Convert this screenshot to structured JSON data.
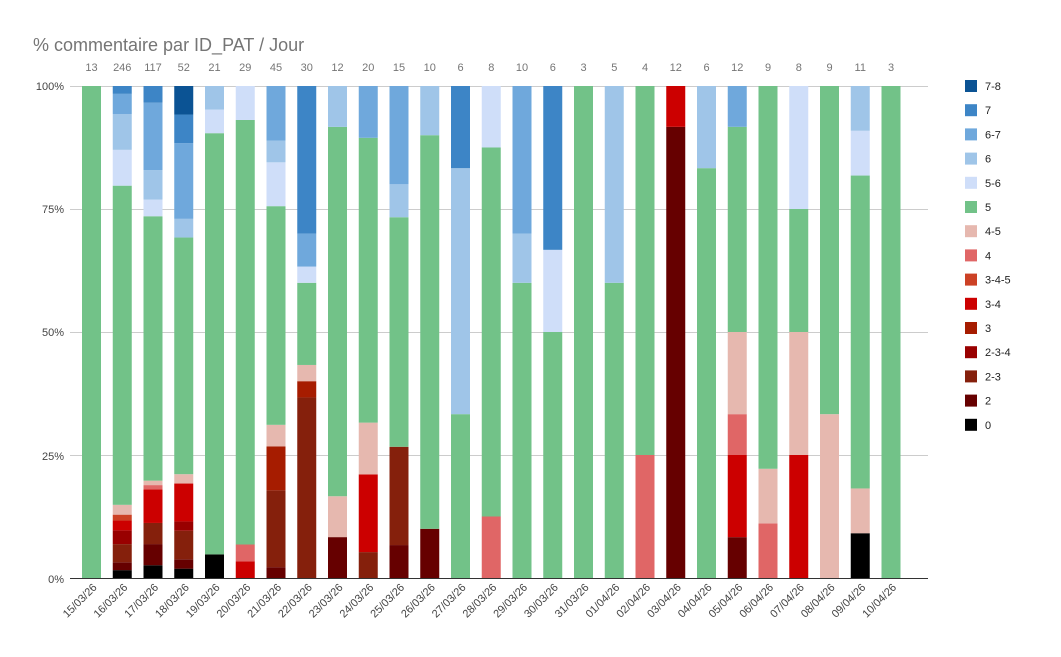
{
  "chart_data": {
    "type": "bar",
    "stacked": "percent",
    "title": "% commentaire par ID_PAT / Jour",
    "yticks": [
      "0%",
      "25%",
      "50%",
      "75%",
      "100%"
    ],
    "ylim": [
      0,
      100
    ],
    "grid": true,
    "legend_position": "right",
    "categories": [
      "15/03/26",
      "16/03/26",
      "17/03/26",
      "18/03/26",
      "19/03/26",
      "20/03/26",
      "21/03/26",
      "22/03/26",
      "23/03/26",
      "24/03/26",
      "25/03/26",
      "26/03/26",
      "27/03/26",
      "28/03/26",
      "29/03/26",
      "30/03/26",
      "31/03/26",
      "01/04/26",
      "02/04/26",
      "03/04/26",
      "04/04/26",
      "05/04/26",
      "06/04/26",
      "07/04/26",
      "08/04/26",
      "09/04/26",
      "10/04/26"
    ],
    "totals": [
      13,
      246,
      117,
      52,
      21,
      29,
      45,
      30,
      12,
      20,
      15,
      10,
      6,
      8,
      10,
      6,
      3,
      5,
      4,
      12,
      6,
      12,
      9,
      8,
      9,
      11,
      3
    ],
    "series": [
      {
        "name": "0",
        "color": "#000000",
        "values": [
          0,
          1.6,
          2.6,
          1.9,
          4.8,
          0,
          0,
          0,
          0,
          0,
          0,
          0,
          0,
          0,
          0,
          0,
          0,
          0,
          0,
          0,
          0,
          0,
          0,
          0,
          0,
          9.1,
          0
        ]
      },
      {
        "name": "2",
        "color": "#660000",
        "values": [
          0,
          1.6,
          4.3,
          1.9,
          0,
          0,
          2.2,
          0,
          8.3,
          0,
          6.7,
          10,
          0,
          0,
          0,
          0,
          0,
          0,
          0,
          91.7,
          0,
          8.3,
          0,
          0,
          0,
          0,
          0
        ]
      },
      {
        "name": "2-3",
        "color": "#85200c",
        "values": [
          0,
          3.7,
          4.3,
          5.8,
          0,
          0,
          15.6,
          36.7,
          0,
          5,
          20,
          0,
          0,
          0,
          0,
          0,
          0,
          0,
          0,
          0,
          0,
          0,
          0,
          0,
          0,
          0,
          0
        ]
      },
      {
        "name": "2-3-4",
        "color": "#990000",
        "values": [
          0,
          2.8,
          0,
          1.9,
          0,
          0,
          0,
          0,
          0,
          0,
          0,
          0,
          0,
          0,
          0,
          0,
          0,
          0,
          0,
          0,
          0,
          0,
          0,
          0,
          0,
          0,
          0
        ]
      },
      {
        "name": "3",
        "color": "#a61c00",
        "values": [
          0,
          0,
          0,
          0,
          0,
          0,
          8.9,
          3.3,
          0,
          0,
          0,
          0,
          0,
          0,
          0,
          0,
          0,
          0,
          0,
          0,
          0,
          0,
          0,
          0,
          0,
          0,
          0
        ]
      },
      {
        "name": "3-4",
        "color": "#cc0000",
        "values": [
          0,
          2,
          6.8,
          7.7,
          0,
          3.4,
          0,
          0,
          0,
          15,
          0,
          0,
          0,
          0,
          0,
          0,
          0,
          0,
          0,
          8.3,
          0,
          16.7,
          0,
          25,
          0,
          0,
          0
        ]
      },
      {
        "name": "3-4-5",
        "color": "#cc4125",
        "values": [
          0,
          1.2,
          0,
          0,
          0,
          0,
          0,
          0,
          0,
          0,
          0,
          0,
          0,
          0,
          0,
          0,
          0,
          0,
          0,
          0,
          0,
          0,
          0,
          0,
          0,
          0,
          0
        ]
      },
      {
        "name": "4",
        "color": "#e06666",
        "values": [
          0,
          0,
          0.9,
          0,
          0,
          3.4,
          0,
          0,
          0,
          0,
          0,
          0,
          0,
          12.5,
          0,
          0,
          0,
          0,
          25,
          0,
          0,
          8.3,
          11.1,
          0,
          0,
          0,
          0
        ]
      },
      {
        "name": "4-5",
        "color": "#e6b8af",
        "values": [
          0,
          2,
          0.9,
          1.9,
          0,
          0,
          4.4,
          3.3,
          8.3,
          10,
          0,
          0,
          0,
          0,
          0,
          0,
          0,
          0,
          0,
          0,
          0,
          16.7,
          11.1,
          25,
          33.3,
          9.1,
          0
        ]
      },
      {
        "name": "5",
        "color": "#72c288",
        "values": [
          100,
          65,
          53.8,
          48.1,
          85.7,
          86.2,
          44.4,
          16.7,
          75,
          55,
          46.7,
          80,
          33.3,
          75,
          60,
          50,
          100,
          60,
          75,
          0,
          83.3,
          41.7,
          77.8,
          25,
          66.7,
          63.6,
          100
        ]
      },
      {
        "name": "5-6",
        "color": "#cfdef9",
        "values": [
          0,
          7.3,
          3.4,
          0,
          4.8,
          6.9,
          8.9,
          3.3,
          0,
          0,
          0,
          0,
          0,
          12.5,
          0,
          16.7,
          0,
          0,
          0,
          0,
          0,
          0,
          0,
          25,
          0,
          9.1,
          0
        ]
      },
      {
        "name": "6",
        "color": "#9fc5e8",
        "values": [
          0,
          7.3,
          6,
          3.8,
          4.8,
          0,
          4.4,
          0,
          8.3,
          0,
          6.7,
          10,
          50,
          0,
          10,
          0,
          0,
          40,
          0,
          0,
          16.7,
          0,
          0,
          0,
          0,
          9.1,
          0
        ]
      },
      {
        "name": "6-7",
        "color": "#6fa8dc",
        "values": [
          0,
          4.1,
          13.7,
          15.4,
          0,
          0,
          11.1,
          6.7,
          0,
          10,
          20,
          0,
          0,
          0,
          30,
          0,
          0,
          0,
          0,
          0,
          0,
          8.3,
          0,
          0,
          0,
          0,
          0
        ]
      },
      {
        "name": "7",
        "color": "#3d85c6",
        "values": [
          0,
          1.6,
          3.4,
          5.8,
          0,
          0,
          0,
          30,
          0,
          0,
          0,
          0,
          16.7,
          0,
          0,
          33.3,
          0,
          0,
          0,
          0,
          0,
          0,
          0,
          0,
          0,
          0,
          0
        ]
      },
      {
        "name": "7-8",
        "color": "#0b5394",
        "values": [
          0,
          0,
          0,
          5.8,
          0,
          0,
          0,
          0,
          0,
          0,
          0,
          0,
          0,
          0,
          0,
          0,
          0,
          0,
          0,
          0,
          0,
          0,
          0,
          0,
          0,
          0,
          0
        ]
      }
    ]
  }
}
